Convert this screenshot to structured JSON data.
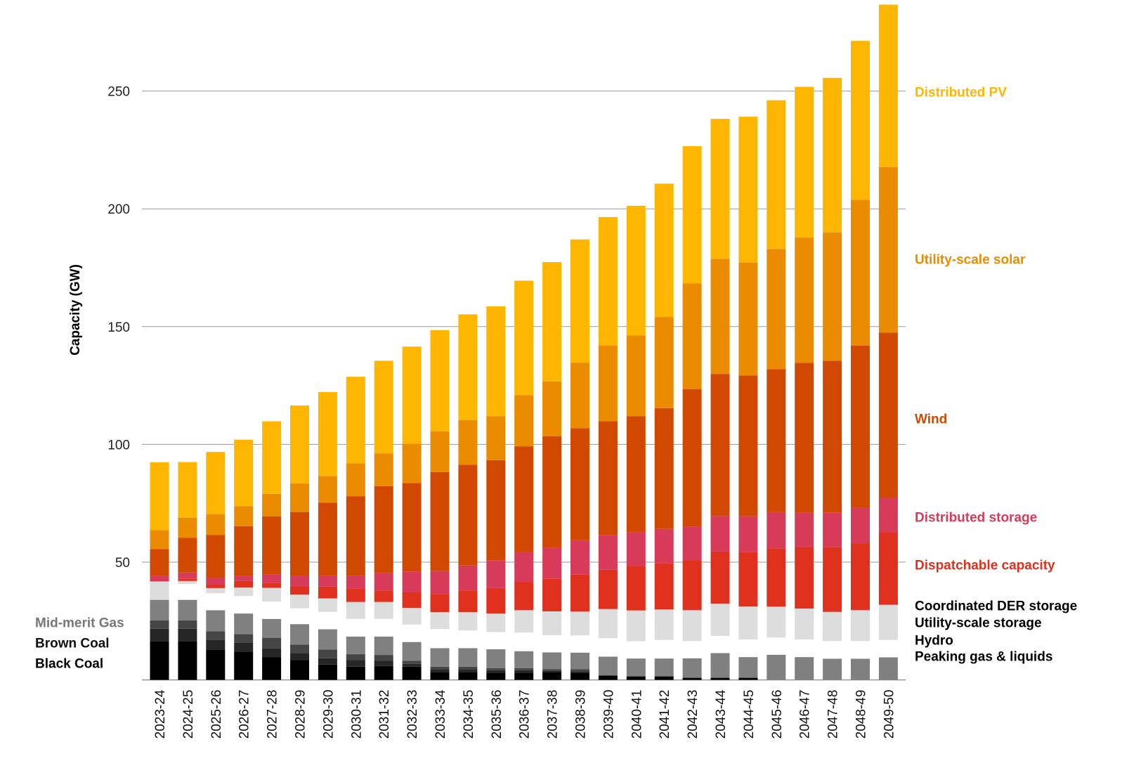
{
  "chart_data": {
    "type": "bar",
    "stacked": true,
    "title": "",
    "xlabel": "",
    "ylabel": "Capacity (GW)",
    "ylim": [
      0,
      290
    ],
    "yticks": [
      50,
      100,
      150,
      200,
      250
    ],
    "grid": true,
    "categories": [
      "2023-24",
      "2024-25",
      "2025-26",
      "2026-27",
      "2027-28",
      "2028-29",
      "2029-30",
      "2030-31",
      "2031-32",
      "2032-33",
      "2033-34",
      "2034-35",
      "2035-36",
      "2036-37",
      "2037-38",
      "2038-39",
      "2039-40",
      "2040-41",
      "2041-42",
      "2042-43",
      "2043-44",
      "2044-45",
      "2045-46",
      "2046-47",
      "2047-48",
      "2048-49",
      "2049-50"
    ],
    "series": [
      {
        "name": "Black Coal",
        "color": "#000000",
        "values": [
          16.3,
          16.3,
          12.9,
          12.0,
          9.7,
          8.4,
          6.5,
          5.6,
          5.9,
          5.6,
          3.4,
          3.4,
          3.1,
          3.1,
          3.4,
          3.1,
          1.9,
          1.5,
          1.5,
          0.9,
          0.9,
          0.9,
          0,
          0,
          0,
          0,
          0
        ]
      },
      {
        "name": "Brown Coal",
        "color": "#262626",
        "values": [
          5.4,
          5.4,
          4.2,
          3.7,
          3.7,
          3.0,
          2.7,
          2.8,
          2.2,
          1.2,
          1.2,
          1.2,
          1.0,
          1.0,
          0.6,
          0.6,
          0,
          0,
          0,
          0,
          0,
          0,
          0,
          0,
          0,
          0,
          0
        ]
      },
      {
        "name": "Mid-merit Gas",
        "color": "#454545",
        "values": [
          3.6,
          3.6,
          3.5,
          3.7,
          4.5,
          3.6,
          3.7,
          2.5,
          2.5,
          1.3,
          1.0,
          1.0,
          0.9,
          0.9,
          0.6,
          0.8,
          0,
          0,
          0,
          0,
          0,
          0,
          0,
          0,
          0,
          0,
          0
        ]
      },
      {
        "name": "Peaking gas & liquids",
        "color": "#808080",
        "values": [
          8.7,
          8.7,
          9.0,
          8.8,
          8.0,
          8.7,
          8.6,
          7.5,
          7.8,
          8.0,
          7.9,
          7.9,
          8.0,
          7.2,
          7.1,
          7.1,
          8.0,
          7.6,
          7.6,
          8.3,
          10.5,
          8.8,
          10.7,
          9.7,
          9.0,
          9.0,
          9.6
        ]
      },
      {
        "name": "Hydro",
        "color": "#ffffff",
        "values": [
          0,
          6.7,
          7.2,
          7.4,
          7.4,
          6.7,
          7.4,
          7.5,
          7.5,
          7.4,
          8.1,
          7.5,
          7.3,
          7.9,
          7.3,
          7.3,
          7.8,
          7.3,
          7.9,
          7.3,
          7.3,
          7.5,
          7.3,
          7.5,
          7.5,
          7.5,
          7.4
        ]
      },
      {
        "name": "Utility-scale storage",
        "color": "#dddddd",
        "values": [
          7.8,
          1.3,
          2.2,
          3.6,
          5.8,
          5.8,
          5.7,
          7.2,
          7.2,
          7.1,
          7.2,
          7.8,
          7.9,
          9.5,
          10.1,
          10.1,
          12.4,
          13.1,
          12.9,
          13.1,
          13.7,
          14.0,
          13.1,
          13.1,
          12.4,
          13.1,
          14.9
        ]
      },
      {
        "name": "Dispatchable capacity",
        "color": "#e0301e",
        "values": [
          0,
          0.9,
          1.3,
          2.8,
          2.2,
          3.5,
          5.0,
          5.8,
          4.9,
          6.7,
          7.7,
          9.2,
          10.8,
          11.9,
          13.8,
          15.7,
          16.7,
          18.7,
          19.6,
          21.0,
          22.1,
          23.2,
          24.8,
          26.1,
          27.6,
          28.3,
          30.9
        ]
      },
      {
        "name": "Distributed storage",
        "color": "#d83b5a",
        "values": [
          2.4,
          2.7,
          3.0,
          2.2,
          3.6,
          4.5,
          4.5,
          5.2,
          7.5,
          8.6,
          9.7,
          10.6,
          11.8,
          12.7,
          13.1,
          14.6,
          14.6,
          14.6,
          14.6,
          14.5,
          15.1,
          15.1,
          15.3,
          14.6,
          14.6,
          15.2,
          14.5
        ]
      },
      {
        "name": "Wind",
        "color": "#d14900",
        "values": [
          11.4,
          14.7,
          18.3,
          21.1,
          24.5,
          27.1,
          31.1,
          33.9,
          36.8,
          37.7,
          42.0,
          42.8,
          42.5,
          45.0,
          47.5,
          47.6,
          48.4,
          49.1,
          51.3,
          58.4,
          60.3,
          59.7,
          60.7,
          63.6,
          64.4,
          68.8,
          70.2
        ]
      },
      {
        "name": "Utility-scale solar",
        "color": "#eb8c00",
        "values": [
          8.0,
          8.6,
          8.7,
          8.5,
          9.6,
          12.1,
          11.4,
          13.9,
          13.9,
          16.7,
          17.3,
          18.9,
          18.6,
          21.7,
          23.2,
          27.8,
          32.2,
          34.3,
          38.7,
          44.9,
          48.9,
          48.0,
          51.1,
          53.2,
          54.5,
          61.9,
          70.2
        ]
      },
      {
        "name": "Distributed PV",
        "color": "#ffb600",
        "values": [
          28.8,
          23.6,
          26.5,
          28.2,
          30.8,
          33.1,
          35.6,
          36.8,
          39.3,
          41.2,
          43.0,
          44.9,
          46.7,
          48.6,
          50.7,
          52.3,
          54.5,
          55.1,
          56.6,
          58.2,
          59.4,
          61.9,
          63.1,
          64.0,
          65.6,
          67.5,
          69.0
        ]
      }
    ],
    "legend": {
      "placement": "right-and-left-inline",
      "right": [
        {
          "label": "Distributed PV",
          "color": "#ffb600"
        },
        {
          "label": "Utility-scale solar",
          "color": "#eb8c00"
        },
        {
          "label": "Wind",
          "color": "#d14900"
        },
        {
          "label": "Distributed storage",
          "color": "#d83b5a"
        },
        {
          "label": "Dispatchable capacity",
          "color": "#e0301e"
        },
        {
          "label": "Coordinated DER storage",
          "color": "#000000"
        },
        {
          "label": "Utility-scale storage",
          "color": "#000000"
        },
        {
          "label": "Hydro",
          "color": "#000000"
        },
        {
          "label": "Peaking gas & liquids",
          "color": "#000000"
        }
      ],
      "left": [
        {
          "label": "Mid-merit Gas",
          "color": "#777777"
        },
        {
          "label": "Brown Coal",
          "color": "#111111"
        },
        {
          "label": "Black Coal",
          "color": "#000000"
        }
      ]
    }
  }
}
